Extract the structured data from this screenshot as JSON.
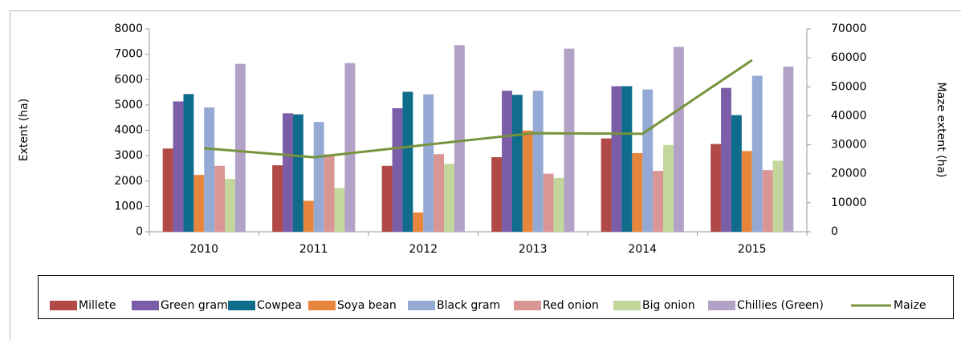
{
  "chart_data": {
    "type": "bar",
    "categories": [
      "2010",
      "2011",
      "2012",
      "2013",
      "2014",
      "2015"
    ],
    "series": [
      {
        "name": "Millete",
        "color": "#b14a47",
        "values": [
          3280,
          2620,
          2600,
          2940,
          3680,
          3460
        ]
      },
      {
        "name": "Green gram",
        "color": "#7b5ea7",
        "values": [
          5140,
          4670,
          4870,
          5560,
          5740,
          5670
        ]
      },
      {
        "name": "Cowpea",
        "color": "#0f6c8b",
        "values": [
          5430,
          4630,
          5520,
          5400,
          5740,
          4600
        ]
      },
      {
        "name": "Soya bean",
        "color": "#e6853b",
        "values": [
          2240,
          1220,
          760,
          3990,
          3100,
          3180
        ]
      },
      {
        "name": "Black gram",
        "color": "#94aad4",
        "values": [
          4900,
          4330,
          5420,
          5560,
          5610,
          6150
        ]
      },
      {
        "name": "Red onion",
        "color": "#d99694",
        "values": [
          2600,
          3050,
          3060,
          2290,
          2400,
          2430
        ]
      },
      {
        "name": "Big onion",
        "color": "#c3d69b",
        "values": [
          2080,
          1720,
          2680,
          2120,
          3420,
          2800
        ]
      },
      {
        "name": "Chillies (Green)",
        "color": "#b3a2c7",
        "values": [
          6620,
          6650,
          7360,
          7220,
          7290,
          6510
        ]
      },
      {
        "name": "Maize",
        "color": "#77933c",
        "type": "line",
        "axis": "y2",
        "values": [
          28800,
          25700,
          29900,
          34000,
          33800,
          59200
        ]
      }
    ],
    "ylabel": "Extent (ha)",
    "y2label": "Maze extent (ha)",
    "ylim": [
      0,
      8000
    ],
    "yticks": [
      0,
      1000,
      2000,
      3000,
      4000,
      5000,
      6000,
      7000,
      8000
    ],
    "y2lim": [
      0,
      70000
    ],
    "y2ticks": [
      0,
      10000,
      20000,
      30000,
      40000,
      50000,
      60000,
      70000
    ],
    "grid": false,
    "legend": "bottom"
  }
}
